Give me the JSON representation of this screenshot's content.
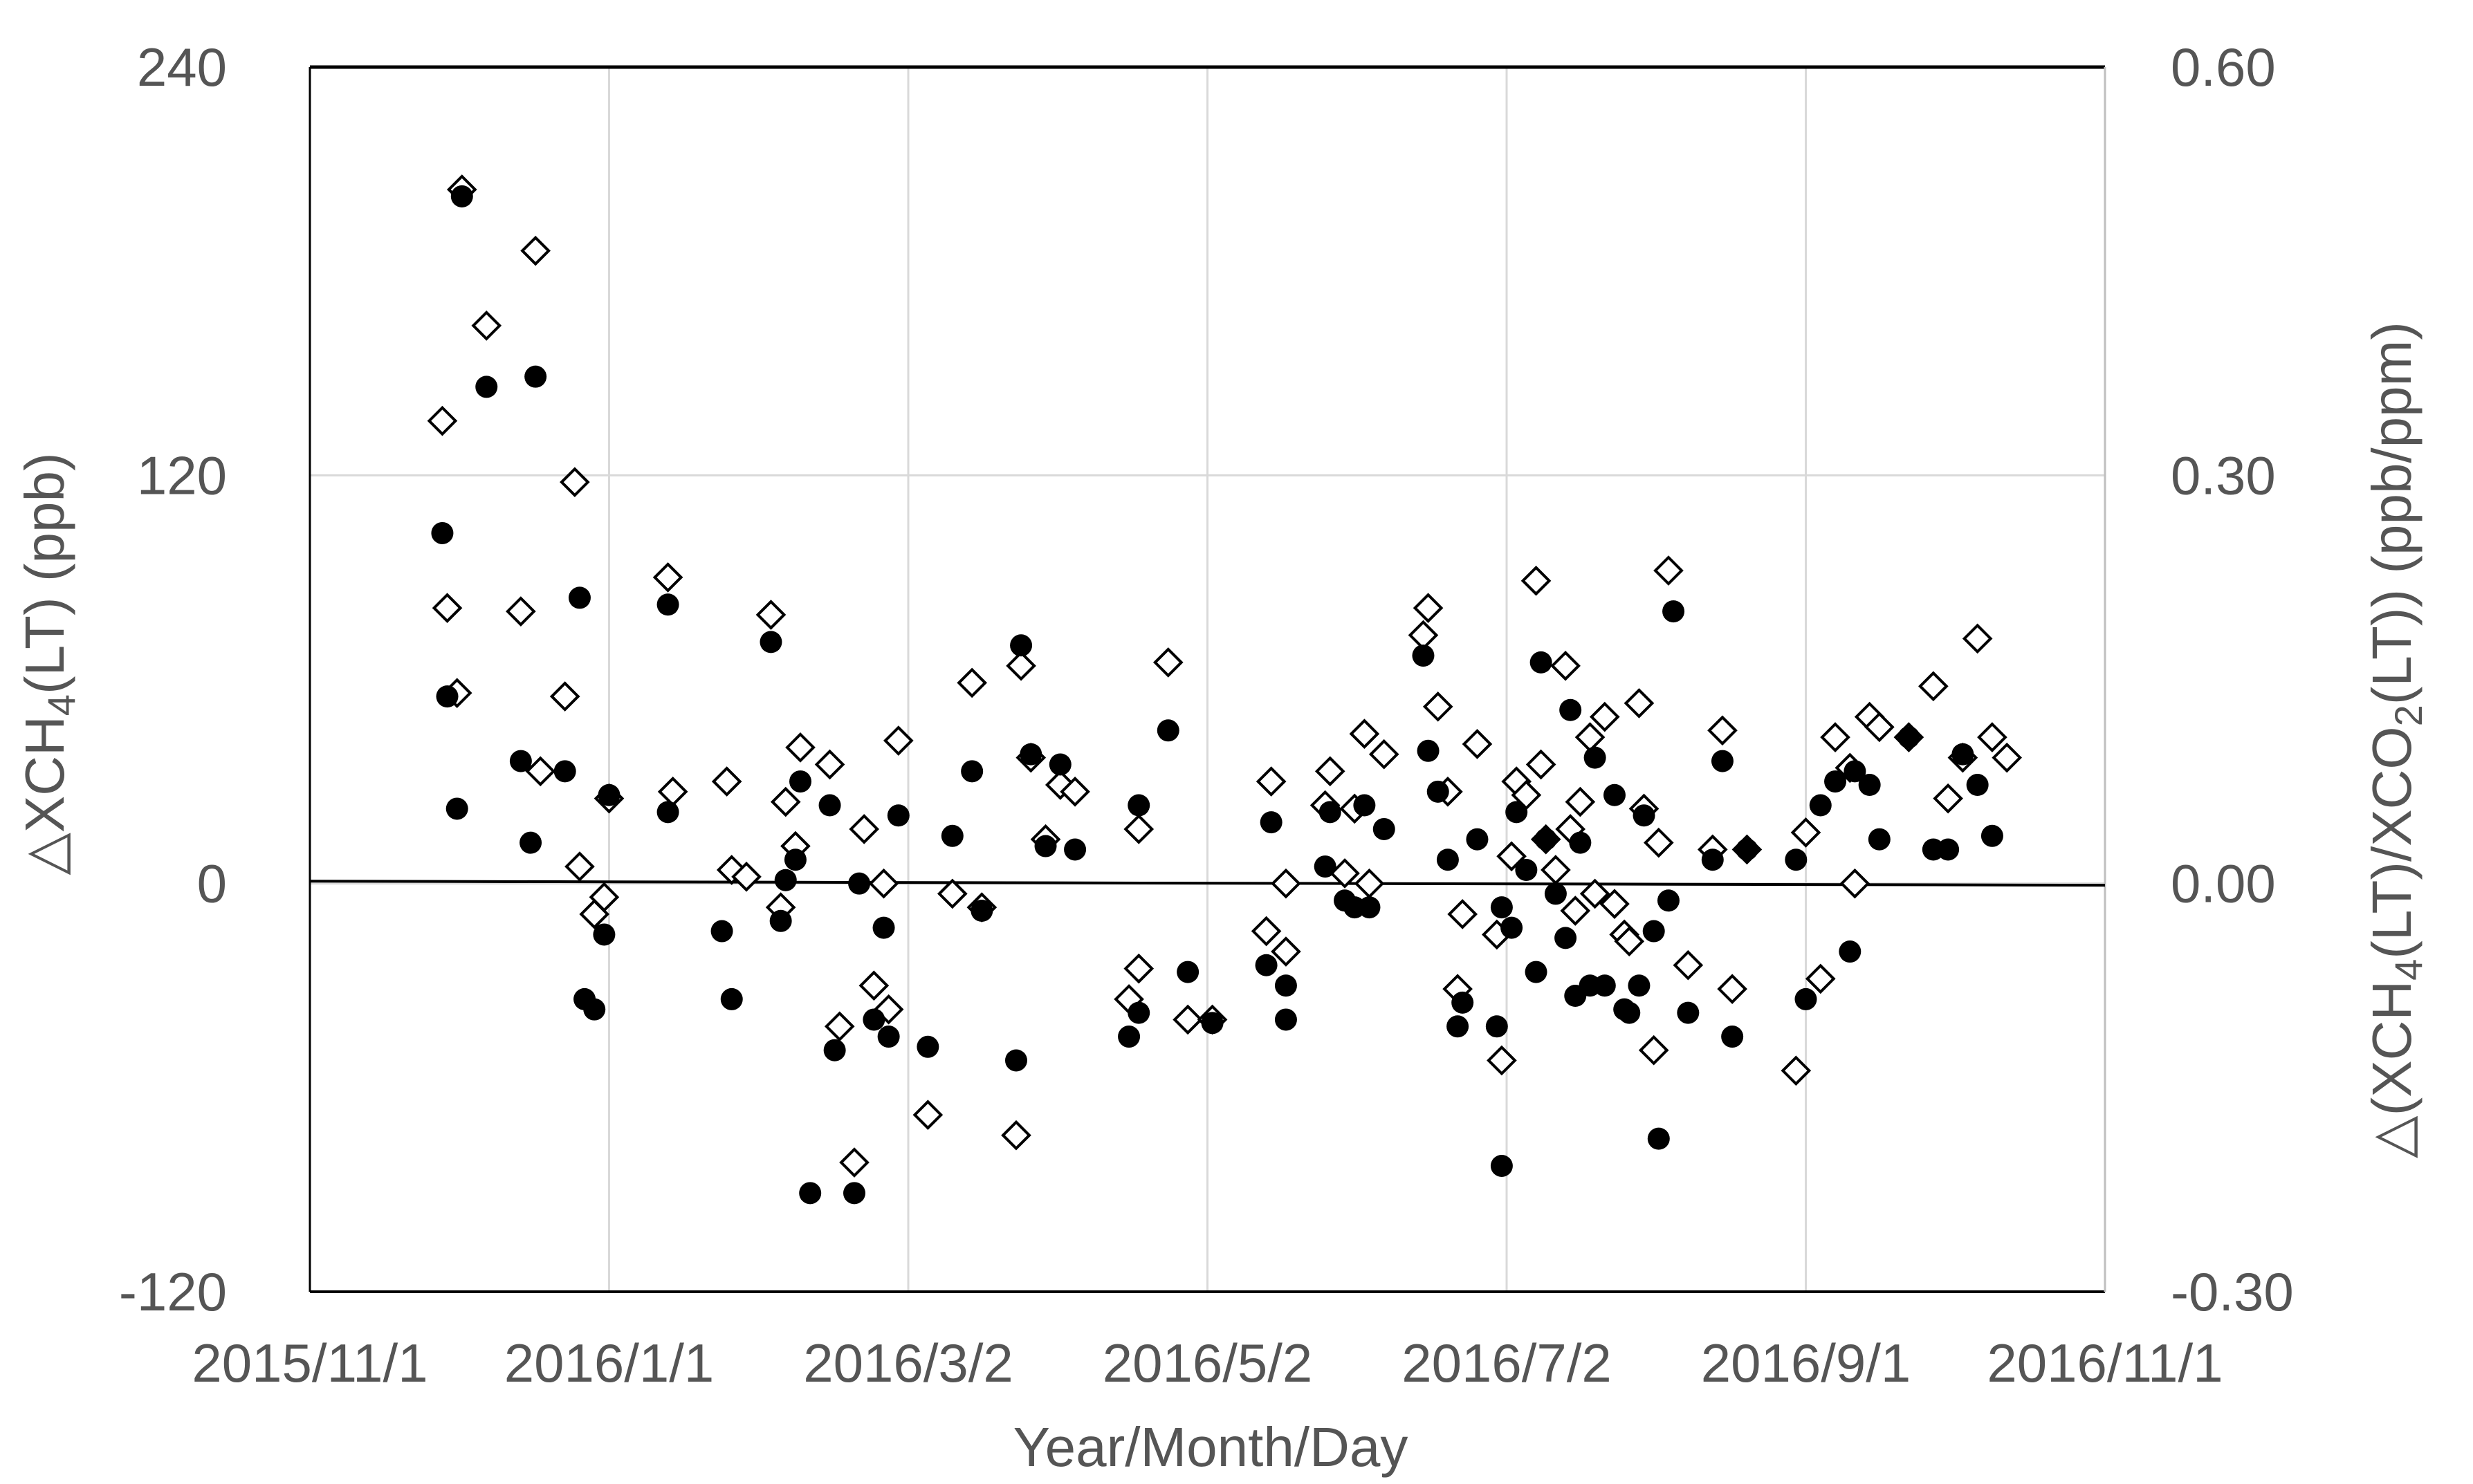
{
  "chart_data": {
    "type": "scatter",
    "xlabel": "Year/Month/Day",
    "ylabel_left": "△XCH4(LT) (ppb)",
    "ylabel_right": "△(XCH4(LT)/XCO2(LT)) (ppb/ppm)",
    "x_ticks": [
      "2015/11/1",
      "2016/1/1",
      "2016/3/2",
      "2016/5/2",
      "2016/7/2",
      "2016/9/1",
      "2016/11/1"
    ],
    "xlim_days": [
      0,
      366
    ],
    "ylim_left": [
      -120,
      240
    ],
    "ylim_right": [
      -0.3,
      0.6
    ],
    "y_left_ticks": [
      "240",
      "120",
      "0",
      "-120"
    ],
    "y_right_ticks": [
      "0.60",
      "0.30",
      "0.00",
      "-0.30"
    ],
    "grid": "vertical and horizontal major gridlines",
    "colors": {
      "grid": "#d9d9d9",
      "axis": "#000000",
      "text": "#555555",
      "marker": "#000000"
    },
    "trend_line_left": {
      "x": [
        0,
        366
      ],
      "y": [
        0.7,
        -0.5
      ]
    },
    "series": [
      {
        "marker": "filled circle",
        "axis": "left",
        "points": [
          [
            27,
            103
          ],
          [
            28,
            55
          ],
          [
            30,
            22
          ],
          [
            31,
            202
          ],
          [
            36,
            146
          ],
          [
            43,
            36
          ],
          [
            45,
            12
          ],
          [
            46,
            149
          ],
          [
            52,
            33
          ],
          [
            55,
            84
          ],
          [
            56,
            -34
          ],
          [
            58,
            -37
          ],
          [
            60,
            -15
          ],
          [
            61,
            26
          ],
          [
            73,
            82
          ],
          [
            73,
            21
          ],
          [
            84,
            -14
          ],
          [
            86,
            -34
          ],
          [
            94,
            71
          ],
          [
            96,
            -11
          ],
          [
            97,
            1
          ],
          [
            99,
            7
          ],
          [
            100,
            30
          ],
          [
            102,
            -91
          ],
          [
            106,
            23
          ],
          [
            107,
            -49
          ],
          [
            111,
            -91
          ],
          [
            112,
            0
          ],
          [
            115,
            -40
          ],
          [
            117,
            -13
          ],
          [
            118,
            -45
          ],
          [
            120,
            20
          ],
          [
            126,
            -48
          ],
          [
            131,
            14
          ],
          [
            135,
            33
          ],
          [
            137,
            -8
          ],
          [
            144,
            -52
          ],
          [
            145,
            70
          ],
          [
            147,
            38
          ],
          [
            150,
            11
          ],
          [
            153,
            35
          ],
          [
            156,
            10
          ],
          [
            167,
            -45
          ],
          [
            169,
            23
          ],
          [
            169,
            -38
          ],
          [
            175,
            45
          ],
          [
            179,
            -26
          ],
          [
            184,
            -41
          ],
          [
            195,
            -24
          ],
          [
            196,
            18
          ],
          [
            199,
            -30
          ],
          [
            199,
            -40
          ],
          [
            207,
            5
          ],
          [
            208,
            21
          ],
          [
            211,
            -5
          ],
          [
            213,
            -7
          ],
          [
            215,
            23
          ],
          [
            216,
            -7
          ],
          [
            219,
            16
          ],
          [
            227,
            67
          ],
          [
            228,
            39
          ],
          [
            230,
            27
          ],
          [
            232,
            7
          ],
          [
            234,
            -42
          ],
          [
            235,
            -35
          ],
          [
            238,
            13
          ],
          [
            242,
            -42
          ],
          [
            243,
            -7
          ],
          [
            243,
            -83
          ],
          [
            245,
            -13
          ],
          [
            246,
            21
          ],
          [
            248,
            4
          ],
          [
            250,
            -26
          ],
          [
            251,
            65
          ],
          [
            252,
            13
          ],
          [
            254,
            -3
          ],
          [
            256,
            -16
          ],
          [
            257,
            51
          ],
          [
            258,
            -33
          ],
          [
            259,
            12
          ],
          [
            261,
            -30
          ],
          [
            262,
            37
          ],
          [
            264,
            -30
          ],
          [
            266,
            26
          ],
          [
            268,
            -37
          ],
          [
            269,
            -38
          ],
          [
            271,
            -30
          ],
          [
            272,
            20
          ],
          [
            274,
            -14
          ],
          [
            275,
            -75
          ],
          [
            277,
            -5
          ],
          [
            278,
            80
          ],
          [
            281,
            -38
          ],
          [
            286,
            7
          ],
          [
            288,
            36
          ],
          [
            290,
            -45
          ],
          [
            293,
            10
          ],
          [
            303,
            7
          ],
          [
            305,
            -34
          ],
          [
            308,
            23
          ],
          [
            311,
            30
          ],
          [
            314,
            -20
          ],
          [
            315,
            33
          ],
          [
            318,
            29
          ],
          [
            320,
            13
          ],
          [
            326,
            43
          ],
          [
            331,
            10
          ],
          [
            334,
            10
          ],
          [
            337,
            38
          ],
          [
            340,
            29
          ],
          [
            343,
            14
          ]
        ]
      },
      {
        "marker": "open diamond",
        "axis": "left",
        "points": [
          [
            27,
            136
          ],
          [
            28,
            81
          ],
          [
            30,
            56
          ],
          [
            31,
            204
          ],
          [
            36,
            164
          ],
          [
            43,
            80
          ],
          [
            46,
            186
          ],
          [
            47,
            33
          ],
          [
            52,
            55
          ],
          [
            54,
            118
          ],
          [
            55,
            5
          ],
          [
            58,
            -9
          ],
          [
            60,
            -4
          ],
          [
            61,
            25
          ],
          [
            73,
            90
          ],
          [
            74,
            27
          ],
          [
            85,
            30
          ],
          [
            86,
            4
          ],
          [
            89,
            2
          ],
          [
            94,
            79
          ],
          [
            96,
            -7
          ],
          [
            97,
            24
          ],
          [
            99,
            11
          ],
          [
            100,
            40
          ],
          [
            106,
            35
          ],
          [
            108,
            -42
          ],
          [
            111,
            -82
          ],
          [
            113,
            16
          ],
          [
            115,
            -30
          ],
          [
            117,
            0
          ],
          [
            118,
            -37
          ],
          [
            120,
            42
          ],
          [
            126,
            -68
          ],
          [
            131,
            -3
          ],
          [
            135,
            59
          ],
          [
            137,
            -7
          ],
          [
            144,
            -74
          ],
          [
            145,
            64
          ],
          [
            147,
            37
          ],
          [
            150,
            13
          ],
          [
            153,
            29
          ],
          [
            156,
            27
          ],
          [
            167,
            -34
          ],
          [
            169,
            16
          ],
          [
            169,
            -25
          ],
          [
            175,
            65
          ],
          [
            179,
            -40
          ],
          [
            184,
            -40
          ],
          [
            195,
            -14
          ],
          [
            196,
            30
          ],
          [
            199,
            -20
          ],
          [
            199,
            0
          ],
          [
            207,
            23
          ],
          [
            208,
            33
          ],
          [
            211,
            3
          ],
          [
            213,
            22
          ],
          [
            215,
            44
          ],
          [
            216,
            0
          ],
          [
            219,
            38
          ],
          [
            227,
            73
          ],
          [
            228,
            81
          ],
          [
            230,
            52
          ],
          [
            232,
            27
          ],
          [
            234,
            -31
          ],
          [
            235,
            -9
          ],
          [
            238,
            41
          ],
          [
            242,
            -15
          ],
          [
            243,
            -52
          ],
          [
            245,
            8
          ],
          [
            246,
            30
          ],
          [
            248,
            26
          ],
          [
            250,
            89
          ],
          [
            251,
            35
          ],
          [
            252,
            13
          ],
          [
            254,
            4
          ],
          [
            256,
            64
          ],
          [
            257,
            16
          ],
          [
            258,
            -8
          ],
          [
            259,
            24
          ],
          [
            261,
            43
          ],
          [
            262,
            -3
          ],
          [
            264,
            49
          ],
          [
            266,
            -6
          ],
          [
            268,
            -15
          ],
          [
            269,
            -17
          ],
          [
            271,
            53
          ],
          [
            272,
            22
          ],
          [
            274,
            -49
          ],
          [
            275,
            12
          ],
          [
            277,
            92
          ],
          [
            281,
            -24
          ],
          [
            286,
            10
          ],
          [
            288,
            45
          ],
          [
            290,
            -31
          ],
          [
            293,
            10
          ],
          [
            303,
            -55
          ],
          [
            305,
            15
          ],
          [
            308,
            -28
          ],
          [
            311,
            43
          ],
          [
            314,
            34
          ],
          [
            315,
            0
          ],
          [
            318,
            49
          ],
          [
            320,
            46
          ],
          [
            326,
            43
          ],
          [
            331,
            58
          ],
          [
            334,
            25
          ],
          [
            337,
            37
          ],
          [
            340,
            72
          ],
          [
            343,
            43
          ],
          [
            346,
            37
          ]
        ]
      }
    ]
  }
}
